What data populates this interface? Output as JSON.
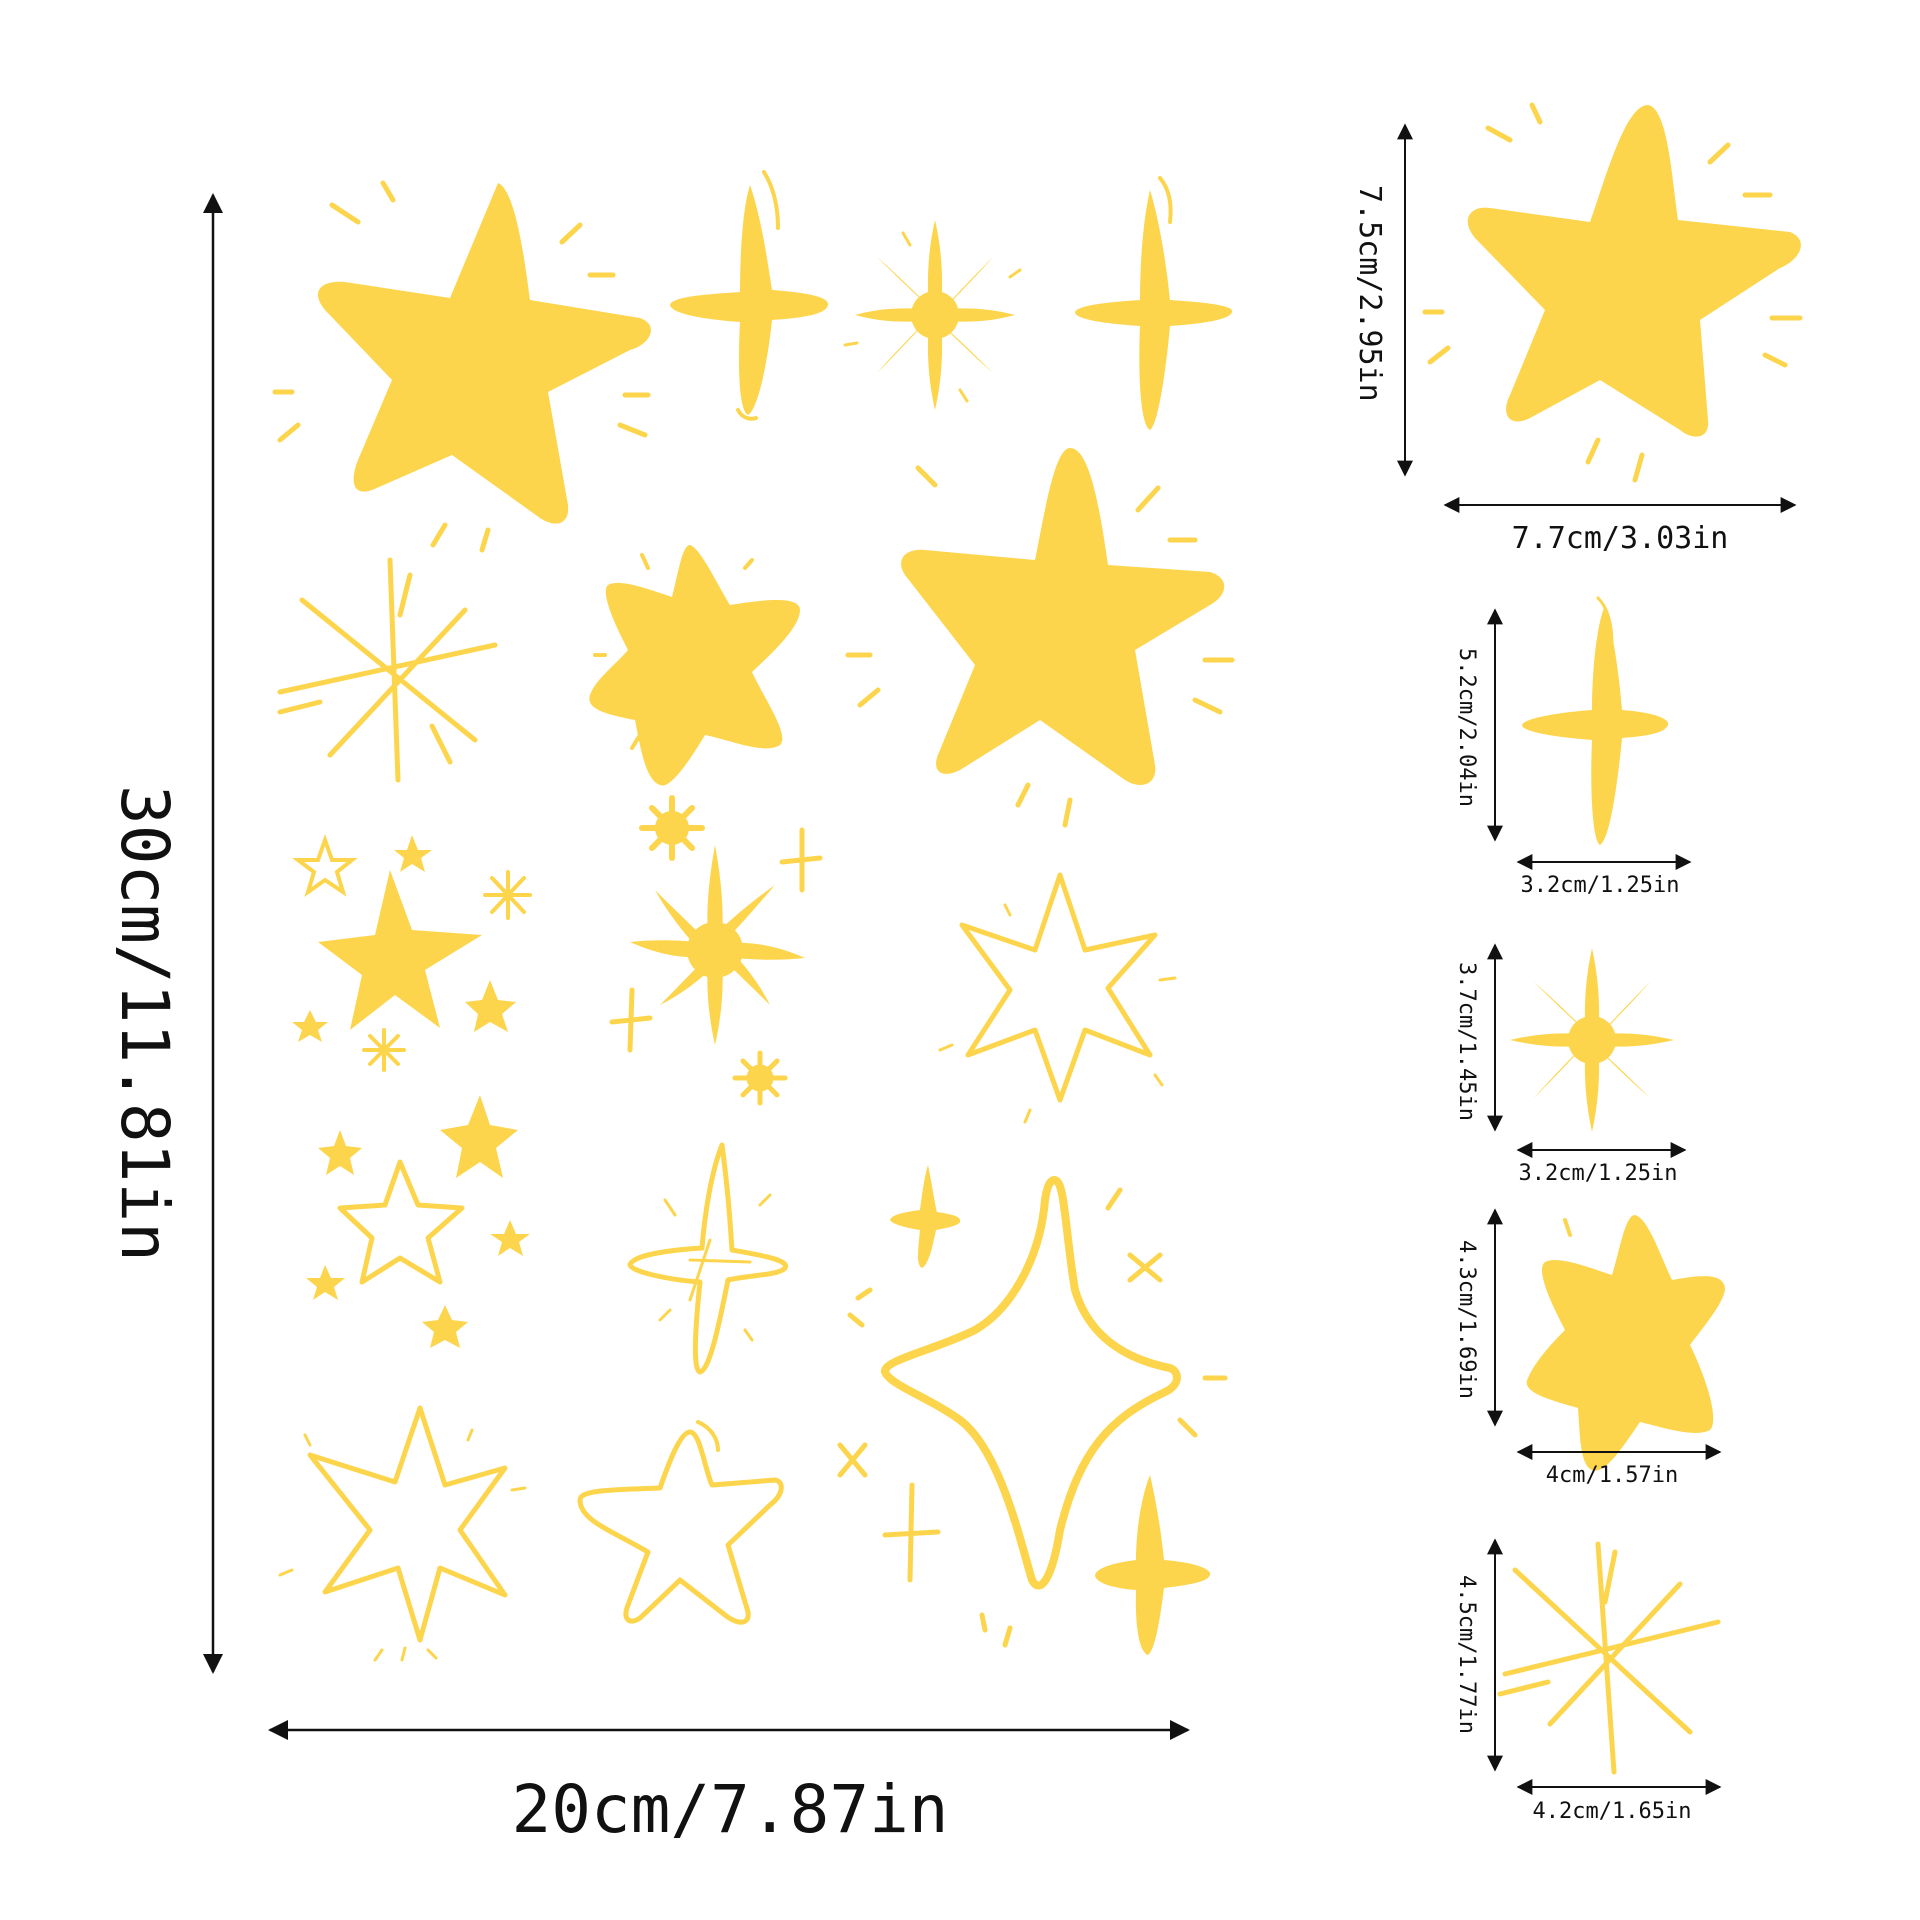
{
  "colors": {
    "star": "#FCD54D",
    "ink": "#111111",
    "background": "#FFFFFF"
  },
  "main_sheet": {
    "width_label": "20cm/7.87in",
    "height_label": "30cm/11.81in"
  },
  "details": [
    {
      "shape": "five-point-star-filled",
      "width_label": "7.7cm/3.03in",
      "height_label": "7.5cm/2.95in"
    },
    {
      "shape": "four-point-sparkle-filled",
      "width_label": "3.2cm/1.25in",
      "height_label": "5.2cm/2.04in"
    },
    {
      "shape": "eight-point-star-filled",
      "width_label": "3.2cm/1.25in",
      "height_label": "3.7cm/1.45in"
    },
    {
      "shape": "six-point-star-filled",
      "width_label": "4cm/1.57in",
      "height_label": "4.3cm/1.69in"
    },
    {
      "shape": "starburst-lines",
      "width_label": "4.2cm/1.65in",
      "height_label": "4.5cm/1.77in"
    }
  ]
}
